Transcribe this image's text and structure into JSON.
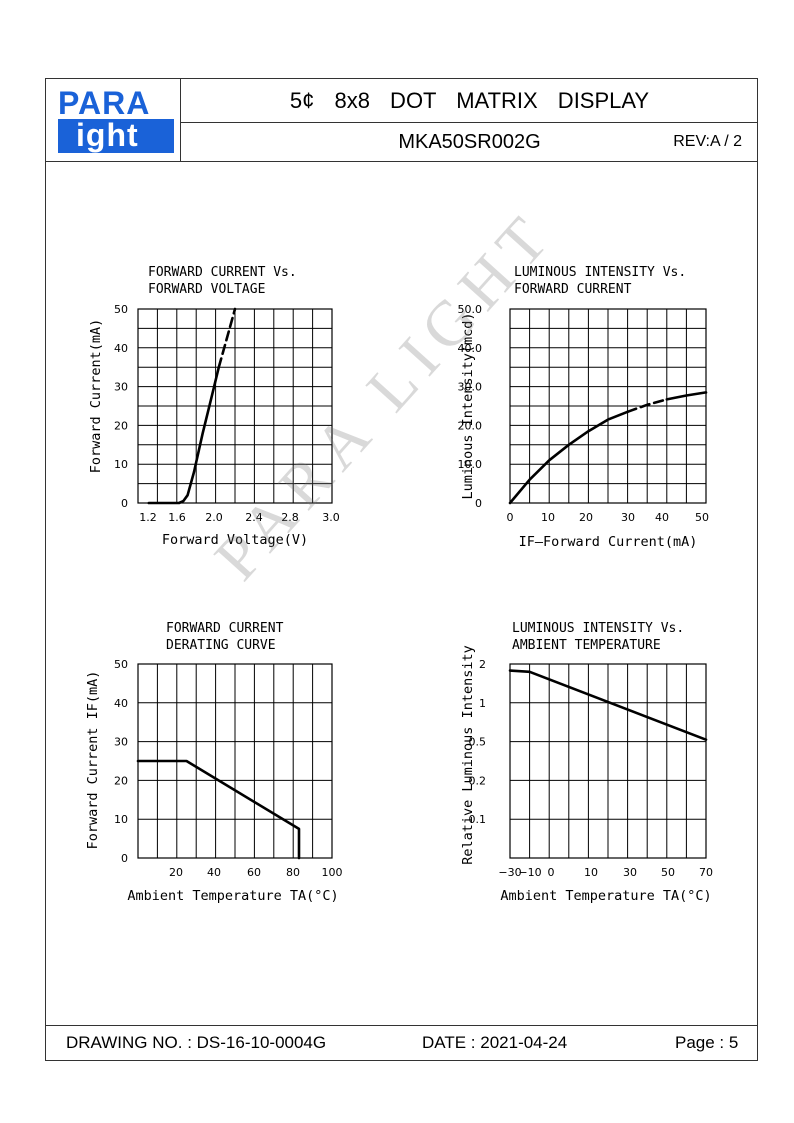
{
  "header": {
    "logo_top": "PARA",
    "logo_bottom": "ight",
    "title": "5¢ 8x8 DOT MATRIX DISPLAY",
    "part_number": "MKA50SR002G",
    "revision": "REV:A / 2"
  },
  "watermark": "PARA LIGHT",
  "footer": {
    "drawing_no": "DRAWING NO. : DS-16-10-0004G",
    "date": "DATE : 2021-04-24",
    "page": "Page : 5"
  },
  "chart_data": [
    {
      "type": "line",
      "title": "FORWARD CURRENT Vs.\nFORWARD VOLTAGE",
      "xlabel": "Forward Voltage(V)",
      "ylabel": "Forward Current(mA)",
      "xlim": [
        1.2,
        3.0
      ],
      "ylim": [
        0,
        50
      ],
      "xticks": [
        "1.2",
        "1.6",
        "2.0",
        "2.4",
        "2.8",
        "3.0"
      ],
      "yticks": [
        "0",
        "10",
        "20",
        "30",
        "40",
        "50"
      ],
      "grid": true,
      "series": [
        {
          "style": "solid",
          "x": [
            1.3,
            1.58,
            1.62,
            1.66,
            1.72,
            1.8,
            1.88,
            1.95
          ],
          "y": [
            0,
            0,
            0.5,
            2,
            8,
            18,
            27,
            35
          ]
        },
        {
          "style": "dashed",
          "x": [
            1.95,
            2.02,
            2.1
          ],
          "y": [
            35,
            42,
            50
          ]
        }
      ]
    },
    {
      "type": "line",
      "title": "LUMINOUS INTENSITY Vs.\nFORWARD CURRENT",
      "xlabel": "IF—Forward Current(mA)",
      "ylabel": "Luminous Intensity(mcd)",
      "xlim": [
        0,
        50
      ],
      "ylim": [
        0,
        50
      ],
      "xticks": [
        "0",
        "10",
        "20",
        "30",
        "40",
        "50"
      ],
      "yticks": [
        "0",
        "10.0",
        "20.0",
        "30.0",
        "40.0",
        "50.0"
      ],
      "grid": true,
      "series": [
        {
          "style": "solid",
          "x": [
            0,
            5,
            10,
            15,
            20,
            25,
            30
          ],
          "y": [
            0,
            6,
            11,
            15,
            18.5,
            21.5,
            23.5
          ]
        },
        {
          "style": "dashed",
          "x": [
            30,
            35,
            40
          ],
          "y": [
            23.5,
            25.3,
            26.7
          ]
        },
        {
          "style": "solid",
          "x": [
            40,
            45,
            50
          ],
          "y": [
            26.7,
            27.7,
            28.5
          ]
        }
      ]
    },
    {
      "type": "line",
      "title": "FORWARD CURRENT\nDERATING CURVE",
      "xlabel": "Ambient Temperature TA(°C)",
      "ylabel": "Forward Current IF(mA)",
      "xlim": [
        0,
        100
      ],
      "ylim": [
        0,
        50
      ],
      "xticks": [
        "20",
        "40",
        "60",
        "80",
        "100"
      ],
      "yticks": [
        "0",
        "10",
        "20",
        "30",
        "40",
        "50"
      ],
      "grid": true,
      "series": [
        {
          "style": "solid",
          "x": [
            0,
            25,
            83,
            83
          ],
          "y": [
            25,
            25,
            7.5,
            0
          ]
        }
      ]
    },
    {
      "type": "line",
      "title": "LUMINOUS INTENSITY Vs.\nAMBIENT TEMPERATURE",
      "xlabel": "Ambient Temperature TA(°C)",
      "ylabel": "Relative Luminous Intensity",
      "xlim": [
        -30,
        70
      ],
      "ylim": [
        0,
        5
      ],
      "xticks": [
        "−30",
        "−10",
        "0",
        "10",
        "30",
        "50",
        "70"
      ],
      "yticks": [
        "0.1",
        "0.2",
        "0.5",
        "1",
        "2"
      ],
      "ytick_positions": [
        1,
        2,
        3,
        4,
        5
      ],
      "grid": true,
      "series": [
        {
          "style": "solid",
          "x": [
            -30,
            -20,
            70
          ],
          "y": [
            4.83,
            4.8,
            3.05
          ]
        }
      ]
    }
  ]
}
